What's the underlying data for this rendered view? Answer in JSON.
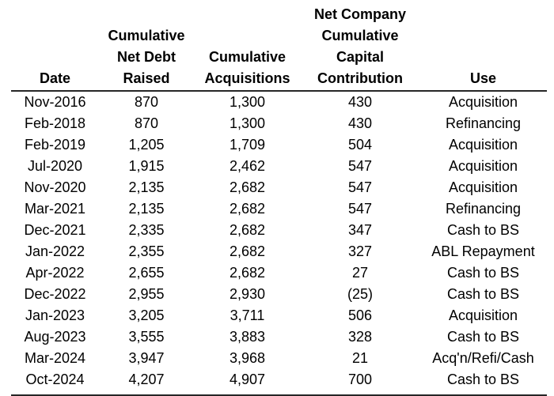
{
  "chart_data": {
    "type": "table",
    "title": "",
    "columns": [
      {
        "id": "date",
        "label": "Date",
        "lines": [
          "Date"
        ]
      },
      {
        "id": "net-debt-raised",
        "label": "Cumulative Net Debt Raised",
        "lines": [
          "Cumulative",
          "Net Debt",
          "Raised"
        ]
      },
      {
        "id": "acquisitions",
        "label": "Cumulative Acquisitions",
        "lines": [
          "Cumulative",
          "Acquisitions"
        ]
      },
      {
        "id": "capital-contribution",
        "label": "Net Company Cumulative Capital Contribution",
        "lines": [
          "Net Company",
          "Cumulative",
          "Capital",
          "Contribution"
        ]
      },
      {
        "id": "use",
        "label": "Use",
        "lines": [
          "Use"
        ]
      }
    ],
    "rows": [
      [
        "Nov-2016",
        "870",
        "1,300",
        "430",
        "Acquisition"
      ],
      [
        "Feb-2018",
        "870",
        "1,300",
        "430",
        "Refinancing"
      ],
      [
        "Feb-2019",
        "1,205",
        "1,709",
        "504",
        "Acquisition"
      ],
      [
        "Jul-2020",
        "1,915",
        "2,462",
        "547",
        "Acquisition"
      ],
      [
        "Nov-2020",
        "2,135",
        "2,682",
        "547",
        "Acquisition"
      ],
      [
        "Mar-2021",
        "2,135",
        "2,682",
        "547",
        "Refinancing"
      ],
      [
        "Dec-2021",
        "2,335",
        "2,682",
        "347",
        "Cash to BS"
      ],
      [
        "Jan-2022",
        "2,355",
        "2,682",
        "327",
        "ABL Repayment"
      ],
      [
        "Apr-2022",
        "2,655",
        "2,682",
        "27",
        "Cash to BS"
      ],
      [
        "Dec-2022",
        "2,955",
        "2,930",
        "(25)",
        "Cash to BS"
      ],
      [
        "Jan-2023",
        "3,205",
        "3,711",
        "506",
        "Acquisition"
      ],
      [
        "Aug-2023",
        "3,555",
        "3,883",
        "328",
        "Cash to BS"
      ],
      [
        "Mar-2024",
        "3,947",
        "3,968",
        "21",
        "Acq'n/Refi/Cash"
      ],
      [
        "Oct-2024",
        "4,207",
        "4,907",
        "700",
        "Cash to BS"
      ]
    ],
    "layout": {
      "grid": "off",
      "header_rule": true,
      "bottom_rule": true,
      "cell_alignment": "center"
    },
    "colors": {
      "text": "#000000",
      "rule": "#262626",
      "background": "#ffffff"
    }
  }
}
